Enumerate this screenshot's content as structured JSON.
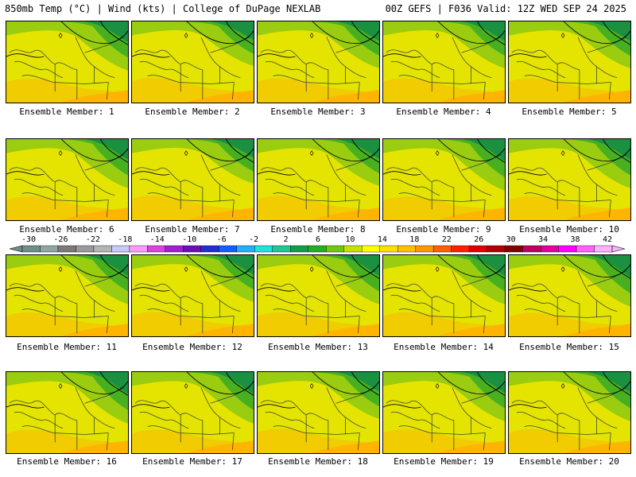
{
  "header": {
    "left": "850mb Temp (°C) | Wind (kts) | College of DuPage NEXLAB",
    "right": "00Z GEFS | F036 Valid: 12Z WED SEP 24 2025"
  },
  "members": [
    {
      "label": "Ensemble Member: 1",
      "green_extent": 0.55
    },
    {
      "label": "Ensemble Member: 2",
      "green_extent": 0.45
    },
    {
      "label": "Ensemble Member: 3",
      "green_extent": 0.5
    },
    {
      "label": "Ensemble Member: 4",
      "green_extent": 0.5
    },
    {
      "label": "Ensemble Member: 5",
      "green_extent": 0.5
    },
    {
      "label": "Ensemble Member: 6",
      "green_extent": 0.55
    },
    {
      "label": "Ensemble Member: 7",
      "green_extent": 0.45
    },
    {
      "label": "Ensemble Member: 8",
      "green_extent": 0.5
    },
    {
      "label": "Ensemble Member: 9",
      "green_extent": 0.6
    },
    {
      "label": "Ensemble Member: 10",
      "green_extent": 0.55
    },
    {
      "label": "Ensemble Member: 11",
      "green_extent": 0.55
    },
    {
      "label": "Ensemble Member: 12",
      "green_extent": 0.5
    },
    {
      "label": "Ensemble Member: 13",
      "green_extent": 0.55
    },
    {
      "label": "Ensemble Member: 14",
      "green_extent": 0.55
    },
    {
      "label": "Ensemble Member: 15",
      "green_extent": 0.6
    },
    {
      "label": "Ensemble Member: 16",
      "green_extent": 0.6
    },
    {
      "label": "Ensemble Member: 17",
      "green_extent": 0.6
    },
    {
      "label": "Ensemble Member: 18",
      "green_extent": 0.5
    },
    {
      "label": "Ensemble Member: 19",
      "green_extent": 0.55
    },
    {
      "label": "Ensemble Member: 20",
      "green_extent": 0.55
    }
  ],
  "colorbar": {
    "ticks": [
      "-30",
      "-26",
      "-22",
      "-18",
      "-14",
      "-10",
      "-6",
      "-2",
      "2",
      "6",
      "10",
      "14",
      "18",
      "22",
      "26",
      "30",
      "34",
      "38",
      "42"
    ],
    "colors": [
      "#6f8f86",
      "#8ea8a0",
      "#7a7a7a",
      "#9a9a9a",
      "#b4b4b4",
      "#c8c8ff",
      "#ff99ff",
      "#e040e0",
      "#a020d0",
      "#6a10b8",
      "#2030d0",
      "#1060ff",
      "#20b0ff",
      "#20e0e0",
      "#20c890",
      "#10a040",
      "#20b020",
      "#70c810",
      "#c8e000",
      "#ffff00",
      "#ffe000",
      "#ffc000",
      "#ff9800",
      "#ff6000",
      "#ff2000",
      "#e00000",
      "#b00000",
      "#800000",
      "#c00060",
      "#e000a0",
      "#ff00ff",
      "#ff60ff",
      "#ffb0ff"
    ]
  }
}
